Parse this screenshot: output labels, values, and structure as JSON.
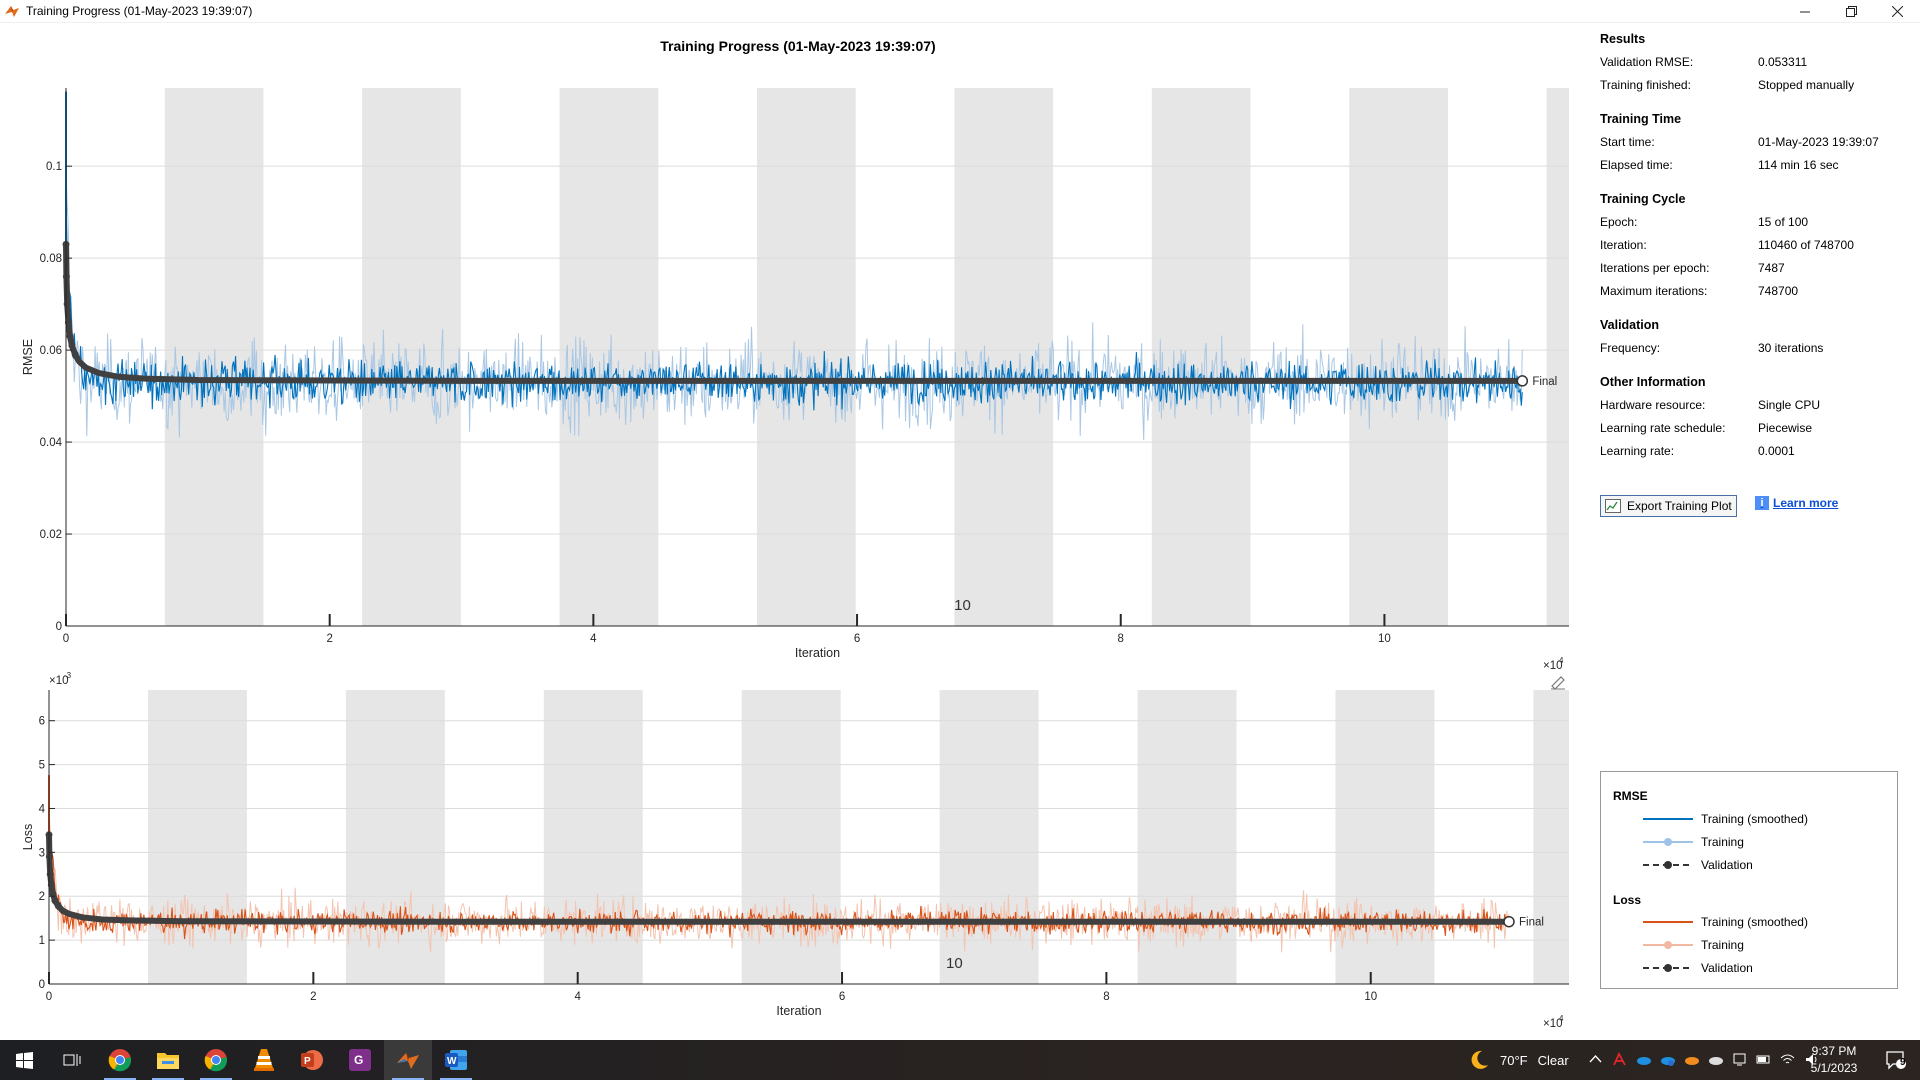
{
  "window": {
    "title": "Training Progress (01-May-2023 19:39:07)",
    "min_icon": "minimize-icon",
    "max_icon": "restore-icon",
    "close_icon": "close-icon"
  },
  "plot_title": "Training Progress (01-May-2023 19:39:07)",
  "chart_data": [
    {
      "type": "line",
      "ylabel": "RMSE",
      "xlabel": "Iteration",
      "x_exponent_label": "×10",
      "x_exponent_power": "4",
      "x_ticks": [
        "0",
        "2",
        "4",
        "6",
        "8",
        "10"
      ],
      "x_tick_values": [
        0,
        20000,
        40000,
        60000,
        80000,
        100000
      ],
      "xlim": [
        0,
        114000
      ],
      "y_ticks": [
        "0",
        "0.02",
        "0.04",
        "0.06",
        "0.08",
        "0.1"
      ],
      "y_tick_values": [
        0,
        0.02,
        0.04,
        0.06,
        0.08,
        0.1
      ],
      "ylim": [
        0,
        0.117
      ],
      "epoch_label": "10",
      "epoch_label_x": 68000,
      "iterations_per_epoch": 7487,
      "final_iteration": 110460,
      "final_label": "Final",
      "colors": {
        "smoothed": "#0072BD",
        "raw": "#aac8e4",
        "validation": "#404040"
      },
      "series": [
        {
          "name": "Training (smoothed)",
          "center": 0.053,
          "spread": 0.008
        },
        {
          "name": "Training",
          "center": 0.053,
          "spread": 0.016
        },
        {
          "name": "Validation",
          "x": [
            0,
            30,
            90,
            180,
            300,
            450,
            700,
            1000,
            1500,
            2500,
            4000,
            6000,
            10000,
            30000,
            60000,
            90000,
            110460
          ],
          "y": [
            0.083,
            0.076,
            0.07,
            0.066,
            0.063,
            0.061,
            0.059,
            0.0575,
            0.0562,
            0.055,
            0.0542,
            0.0538,
            0.0535,
            0.0533,
            0.0533,
            0.0533,
            0.0533
          ]
        }
      ]
    },
    {
      "type": "line",
      "ylabel": "Loss",
      "xlabel": "Iteration",
      "x_exponent_label": "×10",
      "x_exponent_power": "4",
      "y_exponent_label": "×10",
      "y_exponent_power": "-3",
      "x_ticks": [
        "0",
        "2",
        "4",
        "6",
        "8",
        "10"
      ],
      "x_tick_values": [
        0,
        20000,
        40000,
        60000,
        80000,
        100000
      ],
      "xlim": [
        0,
        115000
      ],
      "y_ticks": [
        "0",
        "1",
        "2",
        "3",
        "4",
        "5",
        "6"
      ],
      "y_tick_values": [
        0,
        1,
        2,
        3,
        4,
        5,
        6
      ],
      "ylim": [
        0,
        6.7
      ],
      "epoch_label": "10",
      "epoch_label_x": 68500,
      "iterations_per_epoch": 7487,
      "final_iteration": 110460,
      "final_label": "Final",
      "colors": {
        "smoothed": "#D95319",
        "raw": "#f3c4b0",
        "validation": "#404040"
      },
      "series": [
        {
          "name": "Training (smoothed)",
          "center": 1.42,
          "spread": 0.45
        },
        {
          "name": "Training",
          "center": 1.42,
          "spread": 0.9
        },
        {
          "name": "Validation",
          "x": [
            0,
            30,
            90,
            180,
            300,
            450,
            700,
            1000,
            1500,
            2500,
            4000,
            6000,
            10000,
            30000,
            60000,
            90000,
            110460
          ],
          "y": [
            3.4,
            2.9,
            2.5,
            2.25,
            2.05,
            1.9,
            1.78,
            1.68,
            1.6,
            1.52,
            1.47,
            1.45,
            1.43,
            1.42,
            1.42,
            1.42,
            1.42
          ]
        }
      ]
    }
  ],
  "info": {
    "results": {
      "title": "Results",
      "rows": [
        {
          "k": "Validation RMSE:",
          "v": "0.053311"
        },
        {
          "k": "Training finished:",
          "v": "Stopped manually"
        }
      ]
    },
    "time": {
      "title": "Training Time",
      "rows": [
        {
          "k": "Start time:",
          "v": "01-May-2023 19:39:07"
        },
        {
          "k": "Elapsed time:",
          "v": "114 min 16 sec"
        }
      ]
    },
    "cycle": {
      "title": "Training Cycle",
      "rows": [
        {
          "k": "Epoch:",
          "v": "15 of 100"
        },
        {
          "k": "Iteration:",
          "v": "110460 of 748700"
        },
        {
          "k": "Iterations per epoch:",
          "v": "7487"
        },
        {
          "k": "Maximum iterations:",
          "v": "748700"
        }
      ]
    },
    "validation": {
      "title": "Validation",
      "rows": [
        {
          "k": "Frequency:",
          "v": "30 iterations"
        }
      ]
    },
    "other": {
      "title": "Other Information",
      "rows": [
        {
          "k": "Hardware resource:",
          "v": "Single CPU"
        },
        {
          "k": "Learning rate schedule:",
          "v": "Piecewise"
        },
        {
          "k": "Learning rate:",
          "v": "0.0001"
        }
      ]
    }
  },
  "buttons": {
    "export": "Export Training Plot",
    "learn_more": "Learn more"
  },
  "legend": {
    "rmse_title": "RMSE",
    "loss_title": "Loss",
    "items": [
      "Training (smoothed)",
      "Training",
      "Validation"
    ]
  },
  "taskbar": {
    "apps": [
      "windows-start-icon",
      "task-view-icon",
      "chrome-icon",
      "file-explorer-icon",
      "chrome-alt-icon",
      "vlc-icon",
      "powerpoint-icon",
      "pdf-app-icon",
      "matlab-icon",
      "word-icon"
    ],
    "weather_temp": "70°F",
    "weather_desc": "Clear",
    "time": "9:37 PM",
    "date": "5/1/2023",
    "notif_count": "9"
  }
}
